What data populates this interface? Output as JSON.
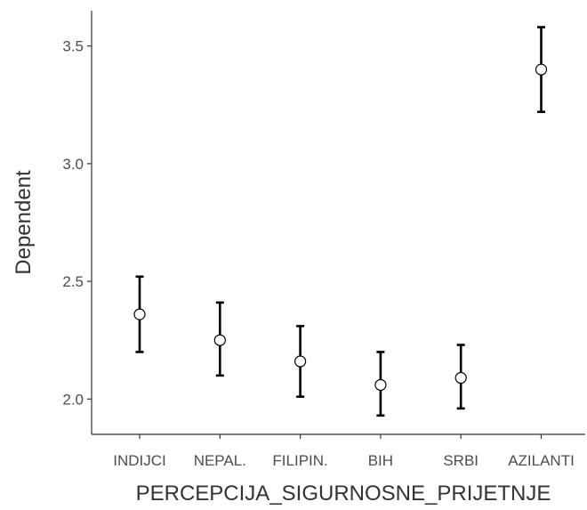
{
  "chart_data": {
    "type": "scatter",
    "title": "",
    "xlabel": "PERCEPCIJA_SIGURNOSNE_PRIJETNJE",
    "ylabel": "Dependent",
    "categories": [
      "INDIJCI",
      "NEPAL.",
      "FILIPIN.",
      "BIH",
      "SRBI",
      "AZILANTI"
    ],
    "series": [
      {
        "values": [
          2.36,
          2.25,
          2.16,
          2.06,
          2.09,
          3.4
        ],
        "lower": [
          2.2,
          2.1,
          2.01,
          1.93,
          1.96,
          3.22
        ],
        "upper": [
          2.52,
          2.41,
          2.31,
          2.2,
          2.23,
          3.58
        ]
      }
    ],
    "yticks": [
      "2.0",
      "2.5",
      "3.0",
      "3.5"
    ],
    "ylim": [
      1.85,
      3.65
    ],
    "grid": false,
    "legend": "none"
  }
}
